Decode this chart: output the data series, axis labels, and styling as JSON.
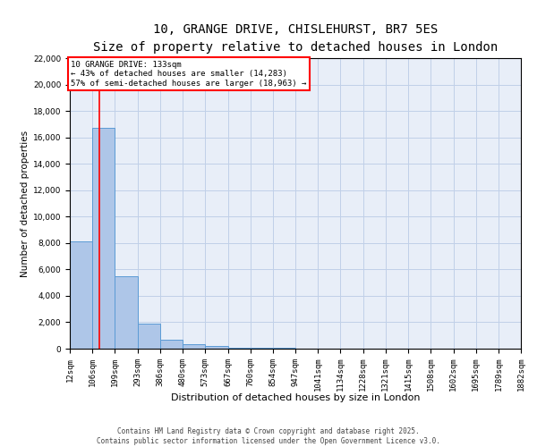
{
  "title_line1": "10, GRANGE DRIVE, CHISLEHURST, BR7 5ES",
  "title_line2": "Size of property relative to detached houses in London",
  "xlabel": "Distribution of detached houses by size in London",
  "ylabel": "Number of detached properties",
  "bar_edges": [
    12,
    106,
    199,
    293,
    386,
    480,
    573,
    667,
    760,
    854,
    947,
    1041,
    1134,
    1228,
    1321,
    1415,
    1508,
    1602,
    1695,
    1789,
    1882
  ],
  "bar_heights": [
    8100,
    16700,
    5500,
    1900,
    650,
    350,
    200,
    100,
    60,
    35,
    20,
    12,
    7,
    5,
    4,
    3,
    2,
    2,
    2,
    2
  ],
  "bar_color": "#aec6e8",
  "bar_edgecolor": "#5b9bd5",
  "grid_color": "#c0d0e8",
  "background_color": "#e8eef8",
  "red_line_x": 133,
  "annotation_text": "10 GRANGE DRIVE: 133sqm\n← 43% of detached houses are smaller (14,283)\n57% of semi-detached houses are larger (18,963) →",
  "ylim": [
    0,
    22000
  ],
  "yticks": [
    0,
    2000,
    4000,
    6000,
    8000,
    10000,
    12000,
    14000,
    16000,
    18000,
    20000,
    22000
  ],
  "footer_text": "Contains HM Land Registry data © Crown copyright and database right 2025.\nContains public sector information licensed under the Open Government Licence v3.0.",
  "title_fontsize": 10,
  "subtitle_fontsize": 9,
  "tick_label_fontsize": 6.5,
  "ylabel_fontsize": 7.5,
  "xlabel_fontsize": 8,
  "annotation_fontsize": 6.5,
  "footer_fontsize": 5.5
}
